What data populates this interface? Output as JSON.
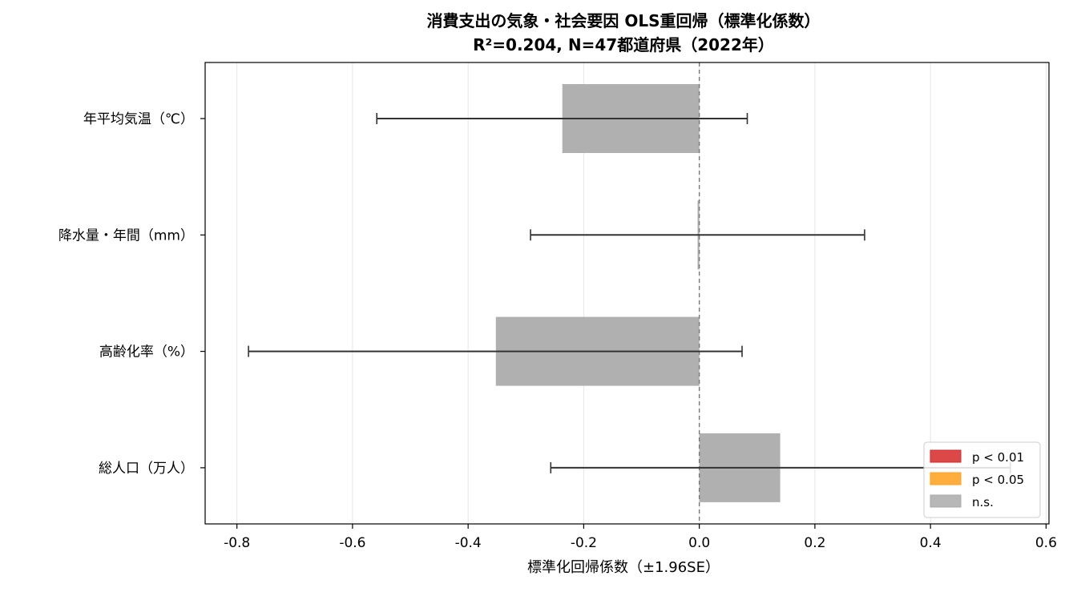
{
  "chart_data": {
    "type": "bar",
    "orientation": "horizontal",
    "title_line1": "消費支出の気象・社会要因 OLS重回帰（標準化係数）",
    "title_line2": "R²=0.204, N=47都道府県（2022年）",
    "xlabel": "標準化回帰係数（±1.96SE）",
    "ylabel": "",
    "xlim": [
      -0.855,
      0.605
    ],
    "x_ticks": [
      -0.8,
      -0.6,
      -0.4,
      -0.2,
      0.0,
      0.2,
      0.4,
      0.6
    ],
    "x_tick_labels": [
      "-0.8",
      "-0.6",
      "-0.4",
      "-0.2",
      "0.0",
      "0.2",
      "0.4",
      "0.6"
    ],
    "grid": "vertical",
    "zero_line": "dashed",
    "categories": [
      "年平均気温（℃）",
      "降水量・年間（mm）",
      "高齢化率（%）",
      "総人口（万人）"
    ],
    "values": [
      -0.237,
      -0.003,
      -0.352,
      0.14
    ],
    "ci_low": [
      -0.558,
      -0.292,
      -0.78,
      -0.257
    ],
    "ci_high": [
      0.083,
      0.286,
      0.074,
      0.538
    ],
    "significance": [
      "n.s.",
      "n.s.",
      "n.s.",
      "n.s."
    ],
    "legend_position": "lower-right",
    "legend": [
      {
        "label": "p < 0.01",
        "color": "#d62728"
      },
      {
        "label": "p < 0.05",
        "color": "#ff9f1a"
      },
      {
        "label": "n.s.",
        "color": "#aaaaaa"
      }
    ],
    "colors": {
      "bar_ns": "#b0b0b0",
      "errorbar": "#333333",
      "grid": "#e6e6e6",
      "zero_line": "#777777",
      "axes": "#000000"
    }
  }
}
